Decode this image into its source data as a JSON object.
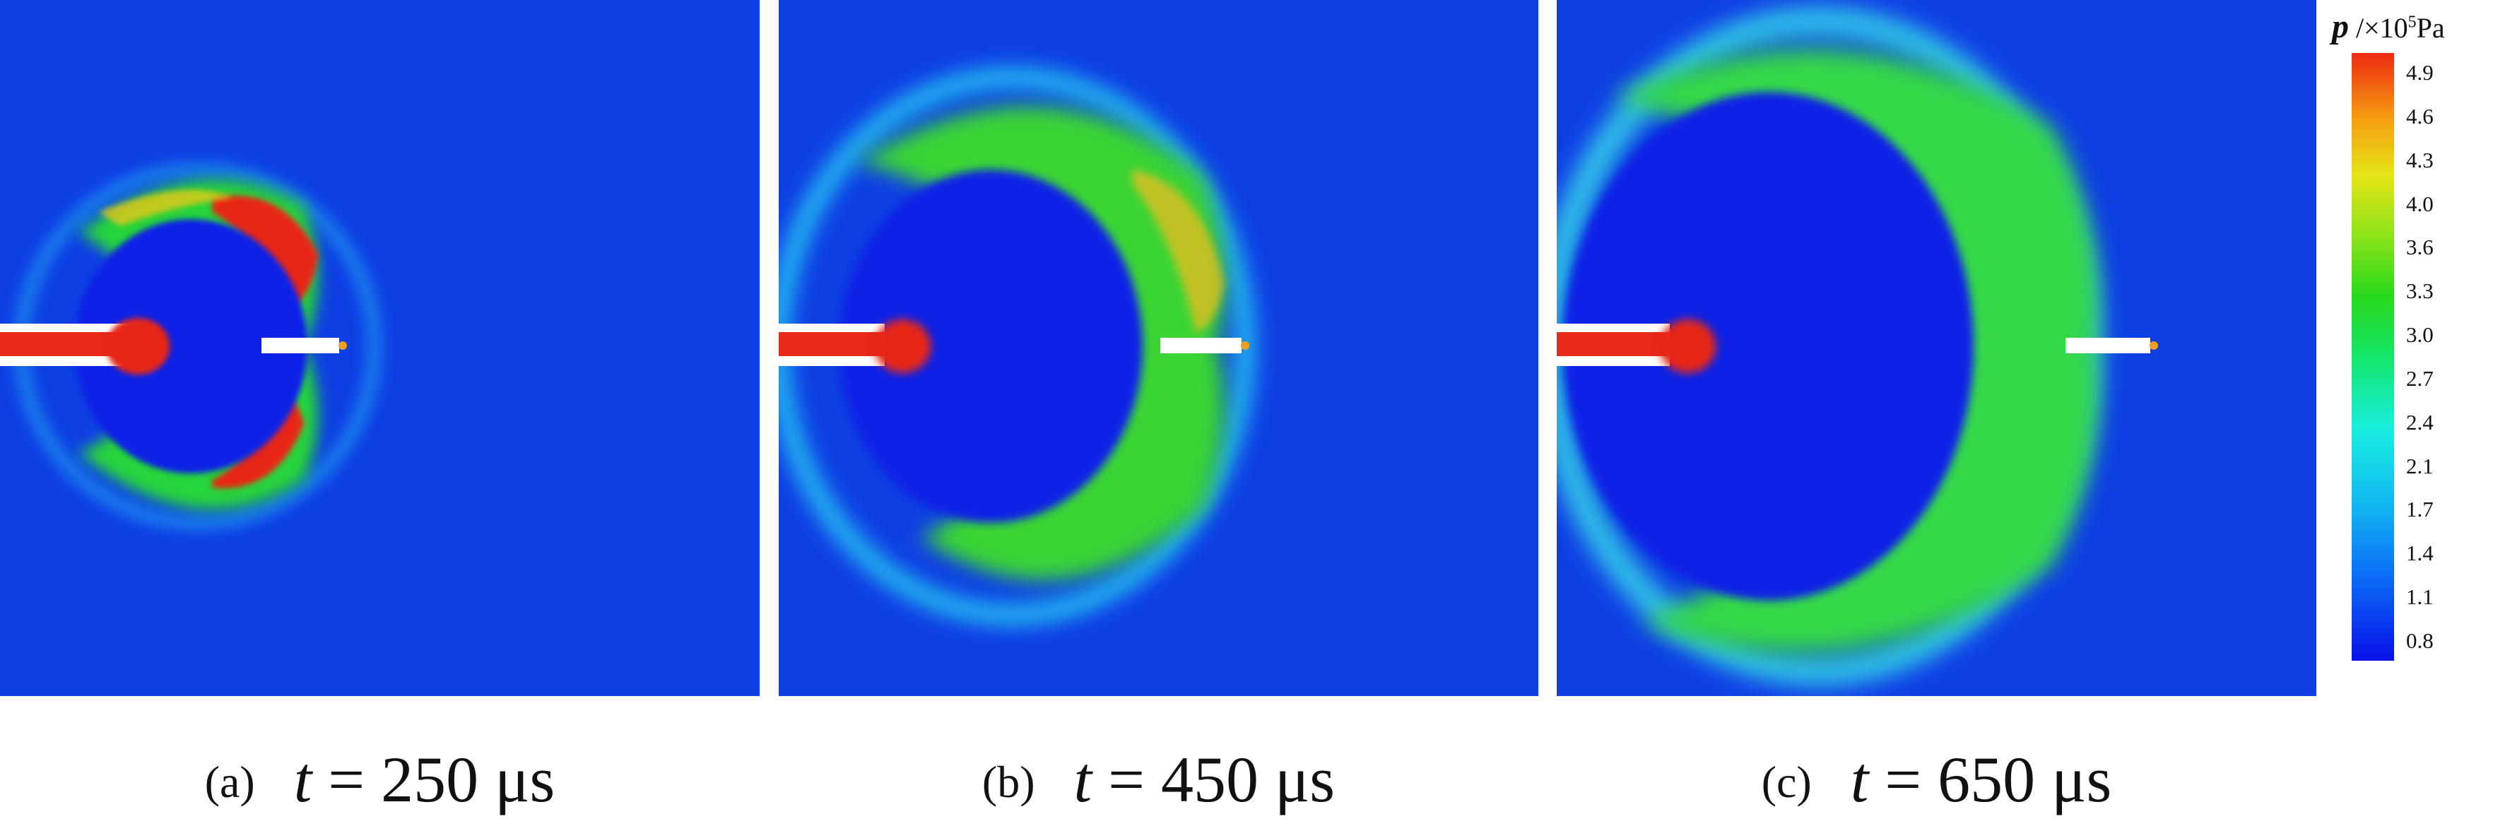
{
  "panels": [
    {
      "label": "(a)",
      "var": "t",
      "rest": " = 250 μs"
    },
    {
      "label": "(b)",
      "var": "t",
      "rest": " = 450 μs"
    },
    {
      "label": "(c)",
      "var": "t",
      "rest": " = 650 μs"
    }
  ],
  "colorbar": {
    "symbol": "p",
    "unit_prefix": " /×10",
    "unit_exp": "5",
    "unit": "Pa",
    "ticks": [
      "4.9",
      "4.6",
      "4.3",
      "4.0",
      "3.6",
      "3.3",
      "3.0",
      "2.7",
      "2.4",
      "2.1",
      "1.7",
      "1.4",
      "1.1",
      "0.8"
    ]
  },
  "colors": {
    "background": "#0f3fe4",
    "low": "#0a10e8",
    "high": "#ee2a12",
    "tube": "#ffffff"
  }
}
